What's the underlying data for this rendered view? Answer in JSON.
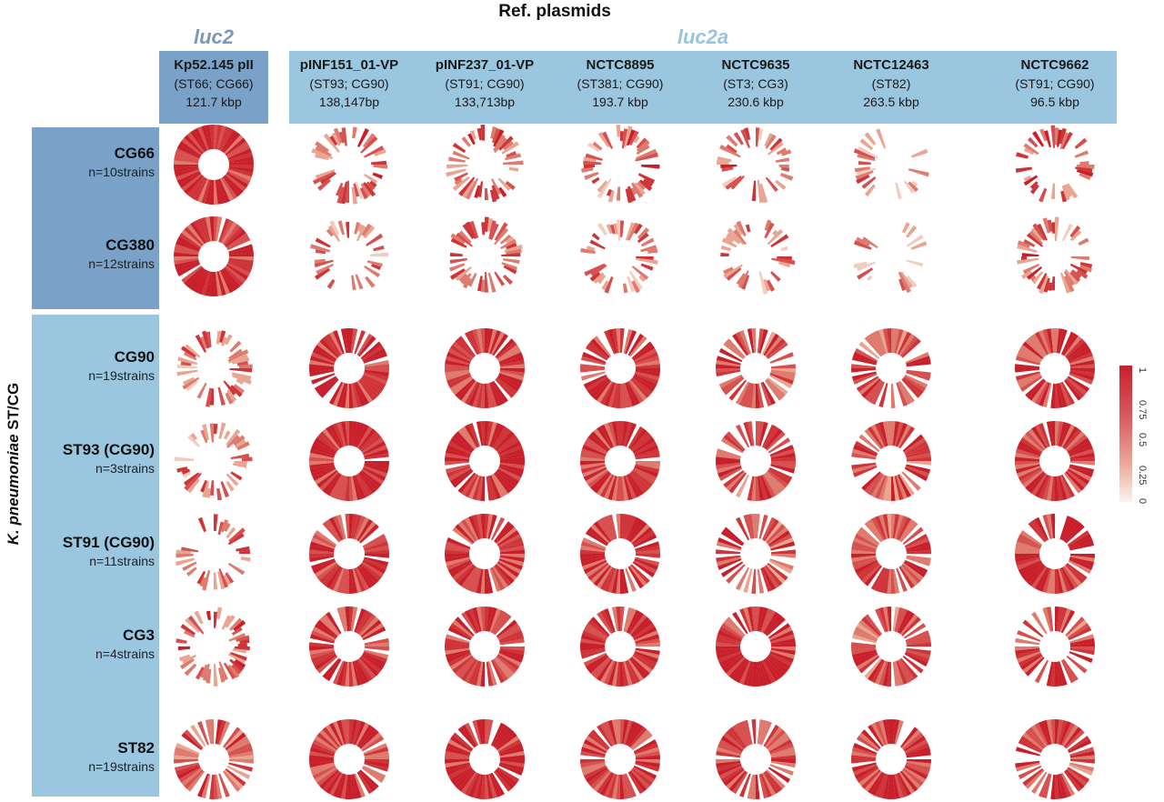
{
  "title": "Ref. plasmids",
  "y_axis": {
    "species": "K. pneumoniae",
    "suffix": "ST/CG"
  },
  "groups": [
    {
      "name": "luc2"
    },
    {
      "name": "luc2a"
    }
  ],
  "columns": [
    {
      "name": "Kp52.145 pII",
      "sub": "(ST66; CG66)",
      "size": "121.7 kbp",
      "group": "luc2"
    },
    {
      "name": "pINF151_01-VP",
      "sub": "(ST93; CG90)",
      "size": "138,147bp",
      "group": "luc2a"
    },
    {
      "name": "pINF237_01-VP",
      "sub": "(ST91; CG90)",
      "size": "133,713bp",
      "group": "luc2a"
    },
    {
      "name": "NCTC8895",
      "sub": "(ST381; CG90)",
      "size": "193.7 kbp",
      "group": "luc2a"
    },
    {
      "name": "NCTC9635",
      "sub": "(ST3; CG3)",
      "size": "230.6 kbp",
      "group": "luc2a"
    },
    {
      "name": "NCTC12463",
      "sub": "(ST82)",
      "size": "263.5 kbp",
      "group": "luc2a"
    },
    {
      "name": "NCTC9662",
      "sub": "(ST91; CG90)",
      "size": "96.5 kbp",
      "group": "luc2a"
    }
  ],
  "rows": [
    {
      "name": "CG66",
      "count": "n=10strains"
    },
    {
      "name": "CG380",
      "count": "n=12strains"
    },
    {
      "name": "CG90",
      "count": "n=19strains"
    },
    {
      "name": "ST93 (CG90)",
      "count": "n=3strains"
    },
    {
      "name": "ST91 (CG90)",
      "count": "n=11strains"
    },
    {
      "name": "CG3",
      "count": "n=4strains"
    },
    {
      "name": "ST82",
      "count": "n=19strains"
    }
  ],
  "coverage": [
    [
      0.97,
      0.55,
      0.6,
      0.55,
      0.55,
      0.35,
      0.6
    ],
    [
      0.97,
      0.5,
      0.55,
      0.5,
      0.5,
      0.3,
      0.55
    ],
    [
      0.55,
      0.9,
      0.92,
      0.88,
      0.75,
      0.75,
      0.9
    ],
    [
      0.5,
      0.99,
      0.95,
      0.9,
      0.78,
      0.78,
      0.88
    ],
    [
      0.55,
      0.9,
      0.92,
      0.88,
      0.75,
      0.78,
      0.9
    ],
    [
      0.6,
      0.85,
      0.85,
      0.85,
      0.99,
      0.7,
      0.75
    ],
    [
      0.7,
      0.9,
      0.9,
      0.9,
      0.85,
      0.85,
      0.8
    ]
  ],
  "legend": {
    "ticks": [
      "1",
      "0.75",
      "0.5",
      "0.25",
      "0"
    ],
    "colors": {
      "high": "#c8202b",
      "mid": "#e9a592",
      "low": "#fbf3ef"
    }
  }
}
